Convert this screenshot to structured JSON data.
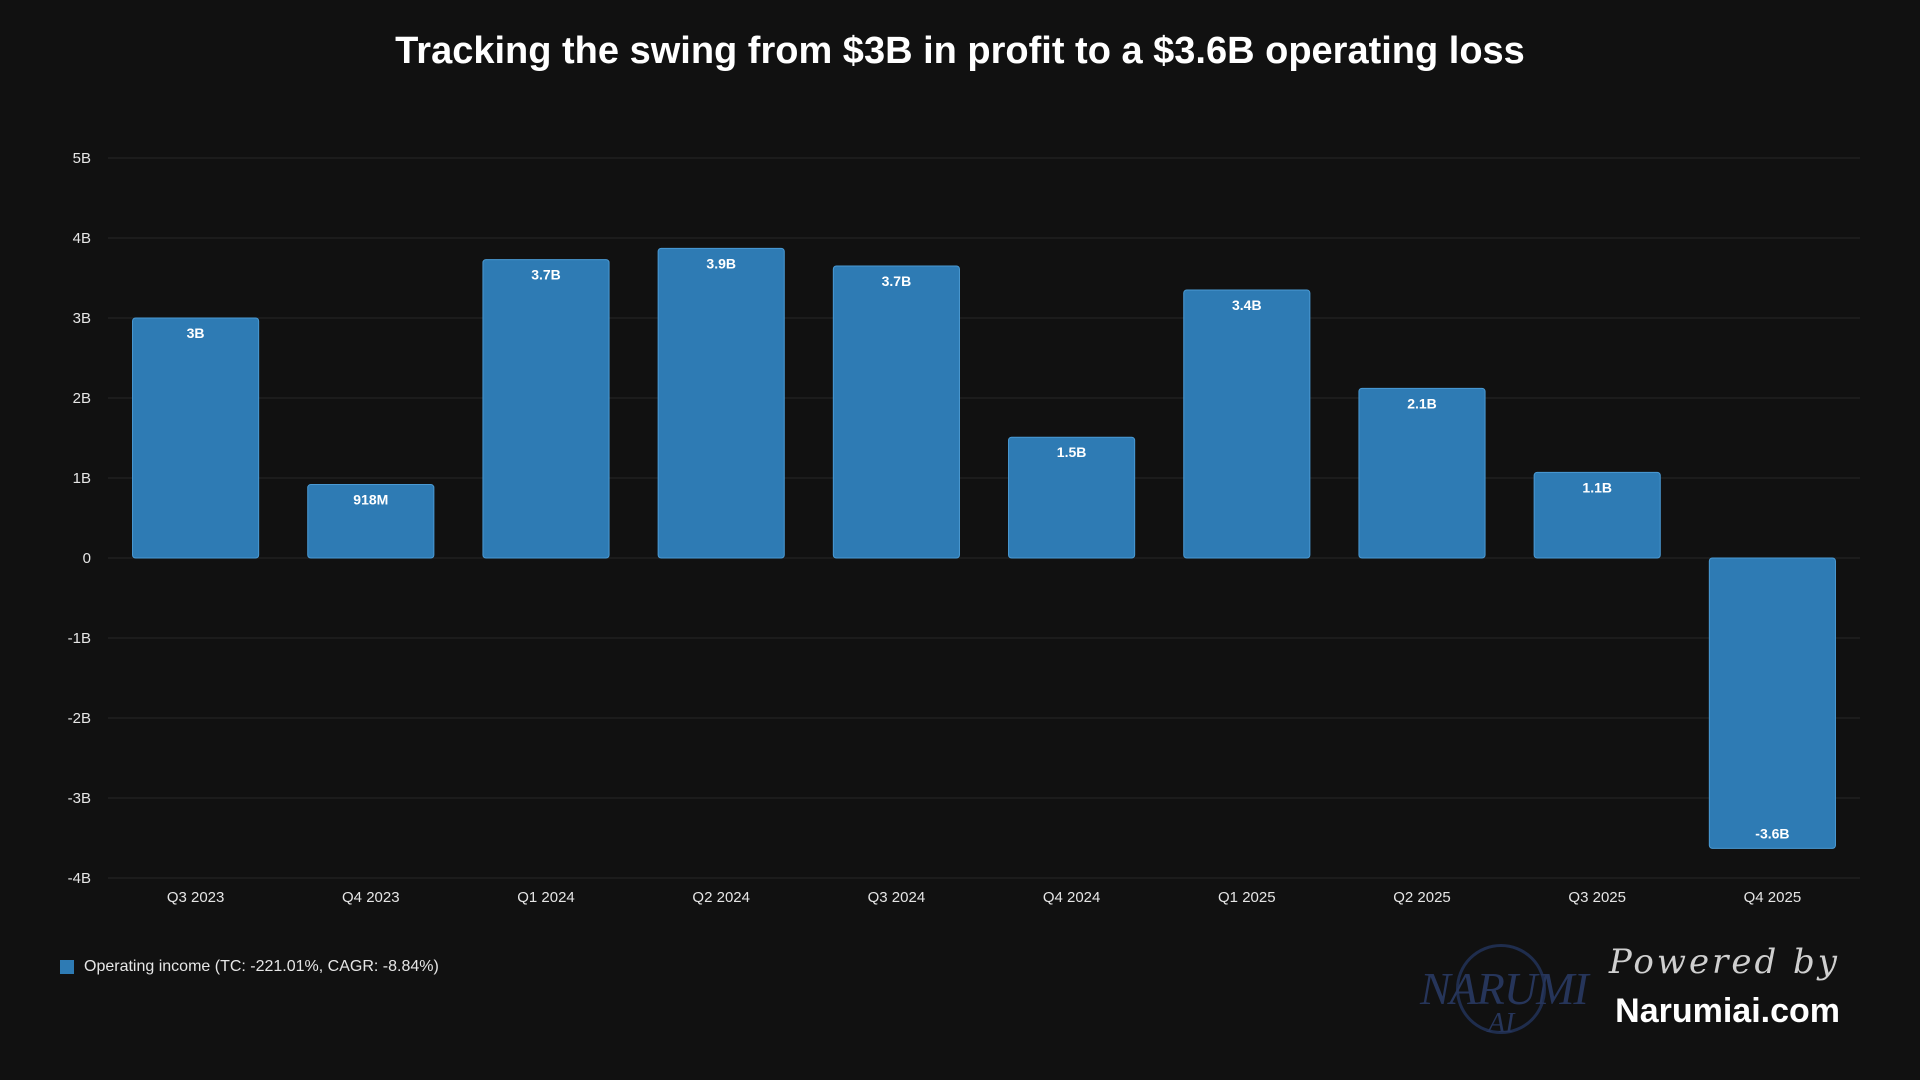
{
  "chart_data": {
    "type": "bar",
    "title": "Tracking the swing from $3B in profit to a $3.6B operating loss",
    "xlabel": "",
    "ylabel": "",
    "categories": [
      "Q3 2023",
      "Q4 2023",
      "Q1 2024",
      "Q2 2024",
      "Q3 2024",
      "Q4 2024",
      "Q1 2025",
      "Q2 2025",
      "Q3 2025",
      "Q4 2025"
    ],
    "series": [
      {
        "name": "Operating income (TC: -221.01%, CAGR: -8.84%)",
        "values": [
          3.0,
          0.918,
          3.73,
          3.87,
          3.65,
          1.51,
          3.35,
          2.12,
          1.07,
          -3.63
        ],
        "data_labels": [
          "3B",
          "918M",
          "3.7B",
          "3.9B",
          "3.7B",
          "1.5B",
          "3.4B",
          "2.1B",
          "1.1B",
          "-3.6B"
        ],
        "color": "#2e7bb4"
      }
    ],
    "ylim": [
      -4,
      5
    ],
    "yticks": [
      5,
      4,
      3,
      2,
      1,
      0,
      -1,
      -2,
      -3,
      -4
    ],
    "ytick_labels": [
      "5B",
      "4B",
      "3B",
      "2B",
      "1B",
      "0",
      "-1B",
      "-2B",
      "-3B",
      "-4B"
    ],
    "grid": true,
    "legend_position": "bottom-left"
  },
  "colors": {
    "background": "#111111",
    "bar": "#2e7bb4",
    "bar_border": "#4a9ad4",
    "grid": "#262626",
    "tick_text": "#e6e6e6",
    "bar_label": "#ffffff"
  },
  "watermark": {
    "logo_text": "NARUMI",
    "logo_sub": "AI",
    "powered": "Powered by",
    "site": "Narumiai.com"
  }
}
